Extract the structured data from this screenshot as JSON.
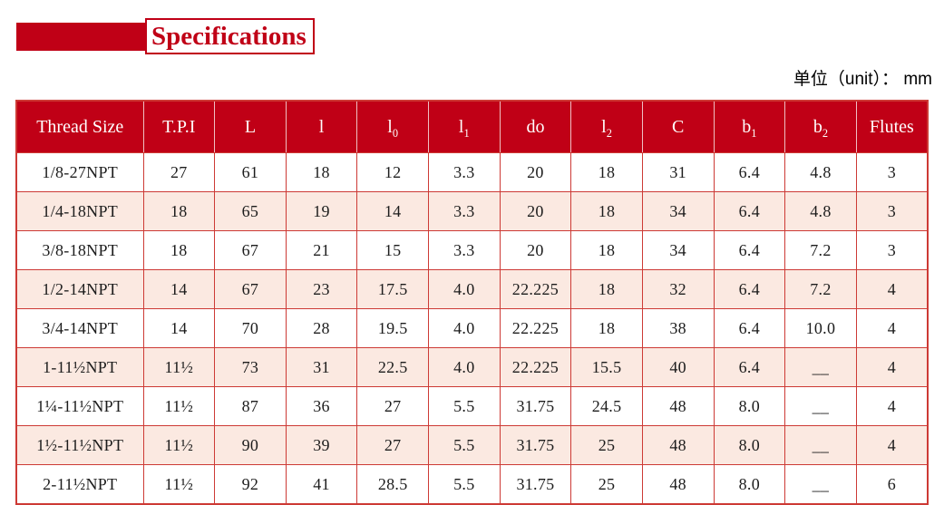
{
  "title": "Specifications",
  "unit_label": "单位（unit）： mm",
  "colors": {
    "deep_red": "#c00016",
    "border_red": "#cd3a35",
    "row_pink": "#fbe9e1",
    "row_white": "#ffffff",
    "header_text": "#ffffff",
    "body_text": "#1c1c1c"
  },
  "table": {
    "columns": [
      {
        "label": "Thread Size"
      },
      {
        "label": "T.P.I"
      },
      {
        "label": "L"
      },
      {
        "label": "l"
      },
      {
        "label": "l",
        "sub": "0"
      },
      {
        "label": "l",
        "sub": "1"
      },
      {
        "label": "do"
      },
      {
        "label": "l",
        "sub": "2"
      },
      {
        "label": "C"
      },
      {
        "label": "b",
        "sub": "1"
      },
      {
        "label": "b",
        "sub": "2"
      },
      {
        "label": "Flutes"
      }
    ],
    "rows": [
      [
        "1/8-27NPT",
        "27",
        "61",
        "18",
        "12",
        "3.3",
        "20",
        "18",
        "31",
        "6.4",
        "4.8",
        "3"
      ],
      [
        "1/4-18NPT",
        "18",
        "65",
        "19",
        "14",
        "3.3",
        "20",
        "18",
        "34",
        "6.4",
        "4.8",
        "3"
      ],
      [
        "3/8-18NPT",
        "18",
        "67",
        "21",
        "15",
        "3.3",
        "20",
        "18",
        "34",
        "6.4",
        "7.2",
        "3"
      ],
      [
        "1/2-14NPT",
        "14",
        "67",
        "23",
        "17.5",
        "4.0",
        "22.225",
        "18",
        "32",
        "6.4",
        "7.2",
        "4"
      ],
      [
        "3/4-14NPT",
        "14",
        "70",
        "28",
        "19.5",
        "4.0",
        "22.225",
        "18",
        "38",
        "6.4",
        "10.0",
        "4"
      ],
      [
        "1-11½NPT",
        "11½",
        "73",
        "31",
        "22.5",
        "4.0",
        "22.225",
        "15.5",
        "40",
        "6.4",
        "__",
        "4"
      ],
      [
        "1¼-11½NPT",
        "11½",
        "87",
        "36",
        "27",
        "5.5",
        "31.75",
        "24.5",
        "48",
        "8.0",
        "__",
        "4"
      ],
      [
        "1½-11½NPT",
        "11½",
        "90",
        "39",
        "27",
        "5.5",
        "31.75",
        "25",
        "48",
        "8.0",
        "__",
        "4"
      ],
      [
        "2-11½NPT",
        "11½",
        "92",
        "41",
        "28.5",
        "5.5",
        "31.75",
        "25",
        "48",
        "8.0",
        "__",
        "6"
      ]
    ]
  }
}
